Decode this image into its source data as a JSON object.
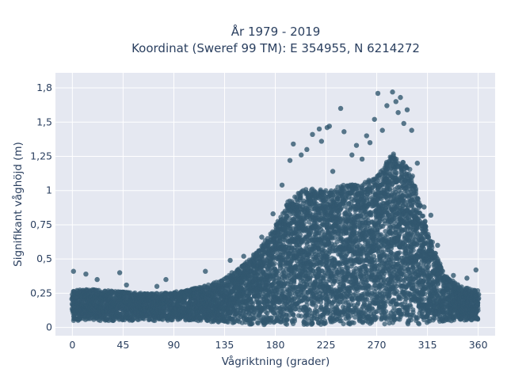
{
  "chart_data": {
    "type": "scatter",
    "title_lines": [
      "År 1979 - 2019",
      "Koordinat (Sweref 99 TM): E 354955, N 6214272"
    ],
    "xlabel": "Vågriktning (grader)",
    "ylabel": "Signifikant våghöjd (m)",
    "xlim": [
      -15,
      375
    ],
    "ylim": [
      -0.06,
      1.86
    ],
    "xticks": [
      0,
      45,
      90,
      135,
      180,
      225,
      270,
      315,
      360
    ],
    "xtick_labels": [
      "0",
      "45",
      "90",
      "135",
      "180",
      "225",
      "270",
      "315",
      "360"
    ],
    "yticks": [
      0,
      0.25,
      0.5,
      0.75,
      1,
      1.25,
      1.5,
      1.75
    ],
    "ytick_labels": [
      "0",
      "0,25",
      "0,5",
      "0,75",
      "1",
      "1,25",
      "1,5",
      "1,8"
    ],
    "grid": true,
    "marker_color": "#32586f",
    "plot_bg": "#e5e8f1",
    "envelope": {
      "x": [
        0,
        15,
        30,
        45,
        60,
        75,
        90,
        105,
        120,
        135,
        150,
        165,
        180,
        195,
        210,
        225,
        240,
        255,
        270,
        285,
        300,
        315,
        330,
        345,
        360
      ],
      "y_upper": [
        0.27,
        0.28,
        0.27,
        0.26,
        0.25,
        0.25,
        0.26,
        0.28,
        0.31,
        0.36,
        0.45,
        0.56,
        0.74,
        0.98,
        1.02,
        1.01,
        1.04,
        1.05,
        1.1,
        1.28,
        1.15,
        0.72,
        0.38,
        0.3,
        0.27
      ],
      "y_lower": [
        0.05,
        0.05,
        0.05,
        0.05,
        0.05,
        0.05,
        0.05,
        0.05,
        0.04,
        0.03,
        0.02,
        0.02,
        0.02,
        0.02,
        0.02,
        0.02,
        0.02,
        0.02,
        0.02,
        0.02,
        0.02,
        0.03,
        0.04,
        0.05,
        0.05
      ]
    },
    "outlier_points": [
      {
        "x": 1,
        "y": 0.41
      },
      {
        "x": 12,
        "y": 0.39
      },
      {
        "x": 22,
        "y": 0.35
      },
      {
        "x": 42,
        "y": 0.4
      },
      {
        "x": 48,
        "y": 0.31
      },
      {
        "x": 75,
        "y": 0.3
      },
      {
        "x": 83,
        "y": 0.35
      },
      {
        "x": 118,
        "y": 0.41
      },
      {
        "x": 140,
        "y": 0.49
      },
      {
        "x": 152,
        "y": 0.52
      },
      {
        "x": 168,
        "y": 0.66
      },
      {
        "x": 178,
        "y": 0.83
      },
      {
        "x": 186,
        "y": 1.04
      },
      {
        "x": 193,
        "y": 1.22
      },
      {
        "x": 196,
        "y": 1.34
      },
      {
        "x": 203,
        "y": 1.26
      },
      {
        "x": 208,
        "y": 1.3
      },
      {
        "x": 213,
        "y": 1.41
      },
      {
        "x": 219,
        "y": 1.45
      },
      {
        "x": 221,
        "y": 1.36
      },
      {
        "x": 226,
        "y": 1.46
      },
      {
        "x": 228,
        "y": 1.47
      },
      {
        "x": 231,
        "y": 1.14
      },
      {
        "x": 238,
        "y": 1.6
      },
      {
        "x": 241,
        "y": 1.43
      },
      {
        "x": 248,
        "y": 1.26
      },
      {
        "x": 252,
        "y": 1.33
      },
      {
        "x": 257,
        "y": 1.23
      },
      {
        "x": 261,
        "y": 1.4
      },
      {
        "x": 264,
        "y": 1.35
      },
      {
        "x": 268,
        "y": 1.52
      },
      {
        "x": 271,
        "y": 1.71
      },
      {
        "x": 275,
        "y": 1.44
      },
      {
        "x": 279,
        "y": 1.62
      },
      {
        "x": 284,
        "y": 1.72
      },
      {
        "x": 287,
        "y": 1.65
      },
      {
        "x": 289,
        "y": 1.57
      },
      {
        "x": 291,
        "y": 1.68
      },
      {
        "x": 294,
        "y": 1.49
      },
      {
        "x": 297,
        "y": 1.59
      },
      {
        "x": 301,
        "y": 1.44
      },
      {
        "x": 306,
        "y": 1.2
      },
      {
        "x": 312,
        "y": 0.88
      },
      {
        "x": 318,
        "y": 0.82
      },
      {
        "x": 324,
        "y": 0.6
      },
      {
        "x": 338,
        "y": 0.38
      },
      {
        "x": 350,
        "y": 0.36
      },
      {
        "x": 358,
        "y": 0.42
      }
    ]
  }
}
